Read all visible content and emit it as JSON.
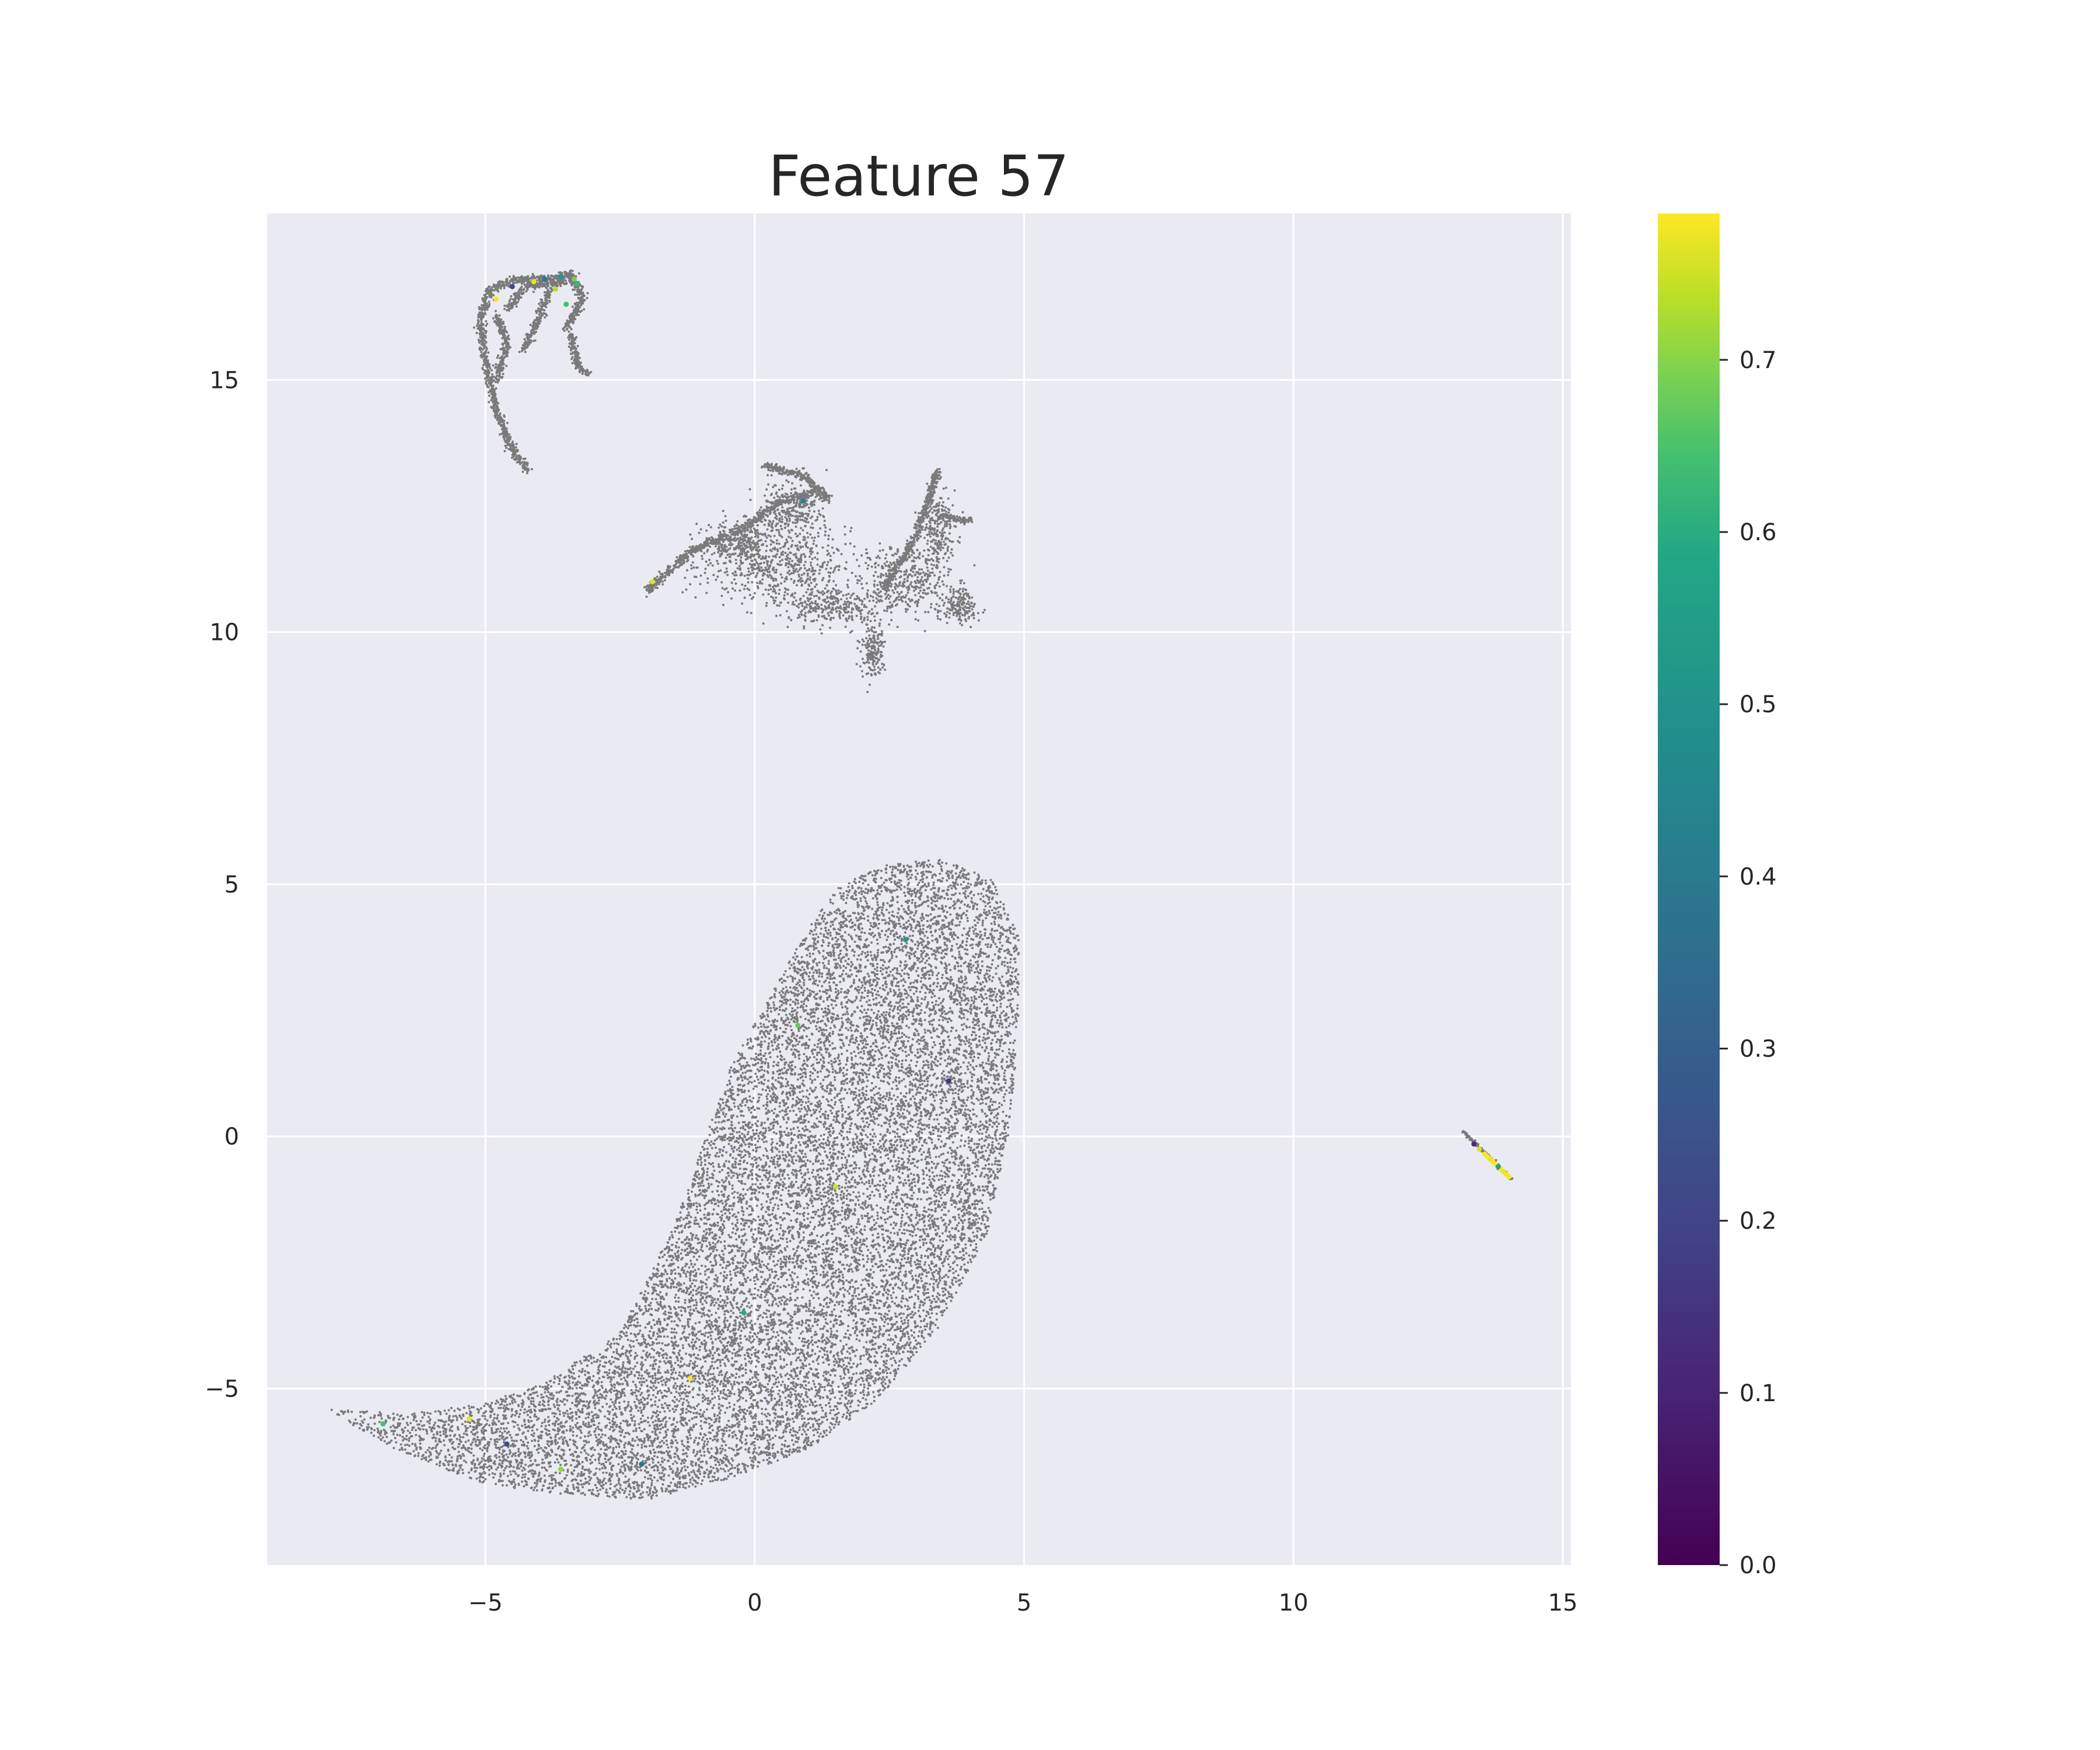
{
  "chart_data": {
    "type": "scatter",
    "title": "Feature 57",
    "xlabel": "",
    "ylabel": "",
    "xlim": [
      -9.05,
      15.15
    ],
    "ylim": [
      -8.5,
      18.3
    ],
    "x_ticks": [
      -5,
      0,
      5,
      10,
      15
    ],
    "x_tick_labels": [
      "−5",
      "0",
      "5",
      "10",
      "15"
    ],
    "y_ticks": [
      -5,
      0,
      5,
      10,
      15
    ],
    "y_tick_labels": [
      "−5",
      "0",
      "5",
      "10",
      "15"
    ],
    "grid": true,
    "background_color": "#eaeaf2",
    "grid_color": "#ffffff",
    "default_point_color": "#666666",
    "colormap": "viridis",
    "colorbar": {
      "range": [
        0,
        0.785
      ],
      "ticks": [
        0,
        0.1,
        0.2,
        0.3,
        0.4,
        0.5,
        0.6,
        0.7
      ],
      "tick_labels": [
        "0.0",
        "0.1",
        "0.2",
        "0.3",
        "0.4",
        "0.5",
        "0.6",
        "0.7"
      ]
    },
    "clusters": [
      {
        "id": "main-body",
        "polygon": [
          [
            -8,
            -5.4
          ],
          [
            -6.5,
            -5.5
          ],
          [
            -5,
            -5.3
          ],
          [
            -3.8,
            -4.8
          ],
          [
            -2.5,
            -3.9
          ],
          [
            -1.6,
            -2.0
          ],
          [
            -0.9,
            0.0
          ],
          [
            -0.4,
            1.5
          ],
          [
            0.3,
            2.8
          ],
          [
            0.9,
            4.0
          ],
          [
            1.6,
            5.0
          ],
          [
            2.5,
            5.4
          ],
          [
            3.5,
            5.5
          ],
          [
            4.4,
            5.1
          ],
          [
            4.9,
            4.0
          ],
          [
            4.9,
            2.0
          ],
          [
            4.7,
            0.0
          ],
          [
            4.3,
            -2.0
          ],
          [
            3.4,
            -3.8
          ],
          [
            2.3,
            -5.2
          ],
          [
            1.0,
            -6.2
          ],
          [
            -0.5,
            -6.8
          ],
          [
            -2.0,
            -7.2
          ],
          [
            -3.5,
            -7.1
          ],
          [
            -5.0,
            -6.9
          ],
          [
            -6.5,
            -6.3
          ],
          [
            -8.0,
            -5.4
          ]
        ],
        "colored_points": [
          [
            -6.9,
            -5.7,
            0.55
          ],
          [
            -5.3,
            -5.6,
            0.76
          ],
          [
            -4.6,
            -6.1,
            0.18
          ],
          [
            -3.6,
            -6.6,
            0.66
          ],
          [
            -2.1,
            -6.5,
            0.3
          ],
          [
            -0.2,
            -3.5,
            0.48
          ],
          [
            1.5,
            -1.0,
            0.72
          ],
          [
            2.8,
            3.9,
            0.42
          ],
          [
            3.6,
            1.1,
            0.12
          ],
          [
            -1.2,
            -4.8,
            0.78
          ],
          [
            0.8,
            2.2,
            0.6
          ]
        ]
      },
      {
        "id": "middle-cluster",
        "blobs": [
          [
            0.7,
            12.4,
            0.55,
            0.55
          ],
          [
            -0.3,
            11.8,
            0.55,
            0.4
          ],
          [
            2.8,
            11.0,
            0.75,
            0.65
          ],
          [
            3.4,
            12.0,
            0.3,
            0.7
          ],
          [
            1.4,
            10.5,
            0.9,
            0.35
          ],
          [
            3.8,
            10.5,
            0.3,
            0.3
          ],
          [
            2.2,
            9.6,
            0.2,
            0.5
          ],
          [
            0.4,
            11.3,
            1.4,
            0.6
          ]
        ],
        "strokes": [
          [
            [
              -2.0,
              10.8
            ],
            [
              -1.2,
              11.6
            ],
            [
              -0.3,
              12.0
            ],
            [
              0.5,
              12.6
            ],
            [
              1.2,
              12.8
            ]
          ],
          [
            [
              0.2,
              13.3
            ],
            [
              0.9,
              13.1
            ],
            [
              1.4,
              12.6
            ]
          ],
          [
            [
              2.4,
              10.9
            ],
            [
              3.0,
              11.9
            ],
            [
              3.4,
              13.2
            ]
          ],
          [
            [
              3.4,
              12.3
            ],
            [
              4.0,
              12.2
            ]
          ]
        ],
        "colored_points": [
          [
            -1.9,
            11.0,
            0.75
          ],
          [
            0.9,
            12.6,
            0.35
          ]
        ]
      },
      {
        "id": "top-left-cluster",
        "strokes": [
          [
            [
              -4.2,
              13.2
            ],
            [
              -4.5,
              13.6
            ],
            [
              -4.8,
              14.4
            ],
            [
              -5.0,
              15.4
            ],
            [
              -5.1,
              16.2
            ],
            [
              -4.9,
              16.8
            ],
            [
              -4.4,
              17.0
            ],
            [
              -3.8,
              17.0
            ],
            [
              -3.4,
              17.1
            ],
            [
              -3.2,
              16.6
            ],
            [
              -3.5,
              16.0
            ]
          ],
          [
            [
              -4.6,
              16.4
            ],
            [
              -4.2,
              16.9
            ],
            [
              -3.7,
              16.9
            ],
            [
              -3.4,
              17.0
            ]
          ],
          [
            [
              -3.8,
              16.8
            ],
            [
              -4.1,
              16.0
            ],
            [
              -4.3,
              15.6
            ]
          ],
          [
            [
              -3.4,
              15.9
            ],
            [
              -3.3,
              15.3
            ],
            [
              -3.1,
              15.1
            ]
          ],
          [
            [
              -4.8,
              15.0
            ],
            [
              -4.6,
              15.7
            ],
            [
              -4.8,
              16.3
            ]
          ]
        ],
        "colored_points": [
          [
            -3.6,
            17.05,
            0.42
          ],
          [
            -3.35,
            17.0,
            0.62
          ],
          [
            -3.9,
            17.0,
            0.32
          ],
          [
            -4.1,
            16.95,
            0.76
          ],
          [
            -3.3,
            16.9,
            0.52
          ],
          [
            -3.7,
            16.8,
            0.7
          ],
          [
            -4.5,
            16.85,
            0.18
          ],
          [
            -3.5,
            16.5,
            0.55
          ],
          [
            -4.8,
            16.6,
            0.78
          ]
        ]
      },
      {
        "id": "right-line-cluster",
        "segment": [
          [
            13.15,
            0.1
          ],
          [
            14.05,
            -0.85
          ]
        ],
        "colored_points": [
          [
            13.35,
            -0.15,
            0.1
          ],
          [
            13.55,
            -0.35,
            0.78
          ],
          [
            13.65,
            -0.45,
            0.76
          ],
          [
            13.75,
            -0.55,
            0.78
          ],
          [
            13.85,
            -0.65,
            0.77
          ],
          [
            13.95,
            -0.75,
            0.78
          ],
          [
            13.45,
            -0.25,
            0.74
          ],
          [
            13.6,
            -0.4,
            0.78
          ],
          [
            13.8,
            -0.6,
            0.45
          ],
          [
            14.0,
            -0.8,
            0.78
          ],
          [
            13.7,
            -0.5,
            0.78
          ],
          [
            13.9,
            -0.7,
            0.76
          ]
        ]
      }
    ]
  }
}
